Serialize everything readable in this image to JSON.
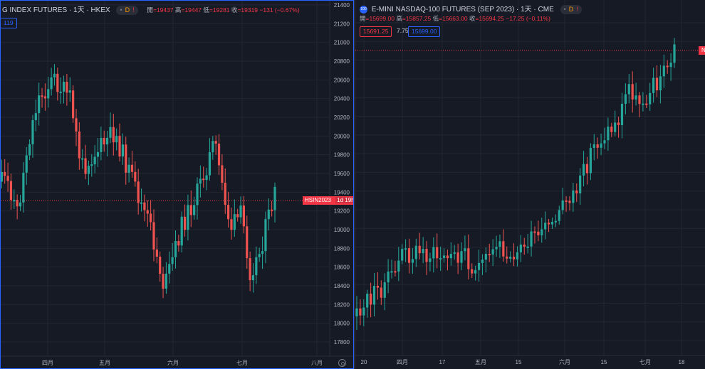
{
  "left": {
    "title": "G INDEX FUTURES · 1天 · HKEX",
    "pill": {
      "d": "D",
      "warn": "!"
    },
    "ohlc": {
      "o_label": "開",
      "o": "=19437",
      "h_label": "高",
      "h": "=19447",
      "l_label": "低",
      "l": "=19281",
      "c_label": "收",
      "c": "=19319",
      "chg": "−131 (−0.67%)"
    },
    "mini_value": "119",
    "yaxis_ticks": [
      "21400",
      "21200",
      "21000",
      "20800",
      "20600",
      "20400",
      "20200",
      "20000",
      "19800",
      "19600",
      "19400",
      "19200",
      "19000",
      "18800",
      "18600",
      "18400",
      "18200",
      "18000",
      "17800"
    ],
    "xaxis_ticks": [
      "四月",
      "五月",
      "六月",
      "七月",
      "八月"
    ],
    "price_label": "HSIN2023",
    "countdown": "1d 19h",
    "settings_icon": "gear-icon"
  },
  "right": {
    "symbol_icon_text": "100",
    "title": "E-MINI NASDAQ-100 FUTURES (SEP 2023) · 1天 · CME",
    "pill": {
      "d": "D",
      "warn": "!"
    },
    "ohlc": {
      "o_label": "開",
      "o": "=15699.00",
      "h_label": "高",
      "h": "=15857.25",
      "l_label": "低",
      "l": "=15663.00",
      "c_label": "收",
      "c": "=15694.25",
      "chg": "−17.25 (−0.11%)"
    },
    "bid": "15691.25",
    "spread": "7.75",
    "ask": "15699.00",
    "xaxis_ticks": [
      "20",
      "四月",
      "17",
      "五月",
      "15",
      "六月",
      "15",
      "七月",
      "18"
    ],
    "edge_label": "N"
  },
  "colors": {
    "up": "#26a69a",
    "down": "#ef5350",
    "bg": "#161a25",
    "grid": "#232631",
    "accent": "#2962ff"
  }
}
